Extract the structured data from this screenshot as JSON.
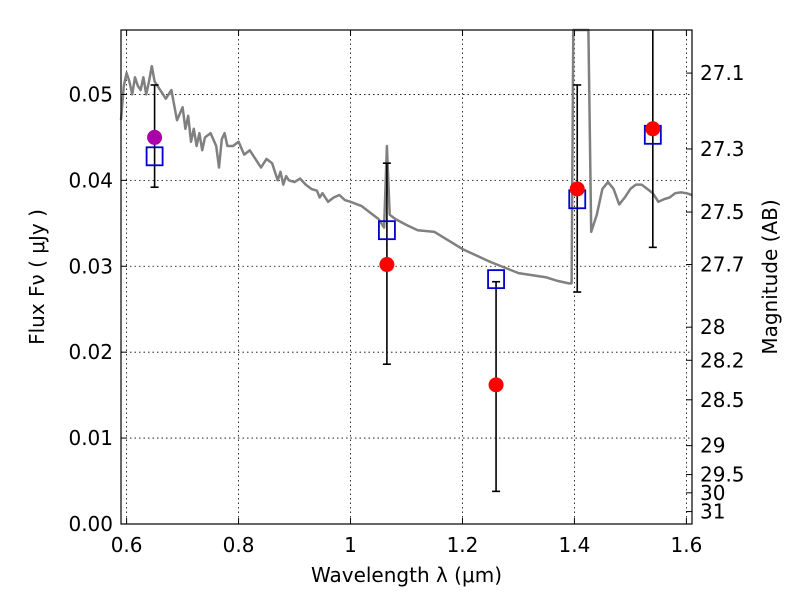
{
  "chart_data": {
    "type": "scatter",
    "xlabel": "Wavelength  λ (μm)",
    "ylabel": "Flux  Fν  ( μJy )",
    "ylabel_right": "Magnitude (AB)",
    "xlim": [
      0.59,
      1.61
    ],
    "ylim": [
      0.0,
      0.0575
    ],
    "x_ticks": [
      0.6,
      0.8,
      1.0,
      1.2,
      1.4,
      1.6
    ],
    "x_tick_labels": [
      "0.6",
      "0.8",
      "1",
      "1.2",
      "1.4",
      "1.6"
    ],
    "y_ticks": [
      0.0,
      0.01,
      0.02,
      0.03,
      0.04,
      0.05
    ],
    "y_tick_labels": [
      "0.00",
      "0.01",
      "0.02",
      "0.03",
      "0.04",
      "0.05"
    ],
    "right_ticks": [
      27.1,
      27.3,
      27.5,
      27.7,
      28,
      28.2,
      28.5,
      29,
      29.5,
      30,
      31
    ],
    "right_tick_labels": [
      "27.1",
      "27.3",
      "27.5",
      "27.7",
      "28",
      "28.2",
      "28.5",
      "29",
      "29.5",
      "30",
      "31"
    ],
    "grid": true,
    "colors": {
      "model": "#808080",
      "observed": "#ff0000",
      "observed_first": "#aa00aa",
      "model_box": "#0000cc",
      "errorbar": "#000000"
    },
    "model_spectrum": {
      "x": [
        0.59,
        0.595,
        0.6,
        0.605,
        0.61,
        0.615,
        0.62,
        0.625,
        0.63,
        0.635,
        0.64,
        0.645,
        0.65,
        0.66,
        0.67,
        0.68,
        0.69,
        0.7,
        0.705,
        0.71,
        0.715,
        0.72,
        0.725,
        0.73,
        0.735,
        0.74,
        0.75,
        0.76,
        0.765,
        0.77,
        0.775,
        0.78,
        0.79,
        0.8,
        0.81,
        0.82,
        0.83,
        0.84,
        0.85,
        0.86,
        0.87,
        0.875,
        0.88,
        0.885,
        0.89,
        0.9,
        0.91,
        0.92,
        0.93,
        0.94,
        0.945,
        0.95,
        0.96,
        0.97,
        0.98,
        0.99,
        1.0,
        1.02,
        1.04,
        1.05,
        1.06,
        1.065,
        1.07,
        1.08,
        1.1,
        1.12,
        1.15,
        1.2,
        1.25,
        1.3,
        1.35,
        1.37,
        1.39,
        1.395,
        1.398,
        1.4,
        1.405,
        1.41,
        1.415,
        1.42,
        1.425,
        1.43,
        1.44,
        1.45,
        1.46,
        1.47,
        1.48,
        1.49,
        1.5,
        1.51,
        1.52,
        1.53,
        1.54,
        1.55,
        1.56,
        1.57,
        1.58,
        1.59,
        1.6,
        1.61
      ],
      "y": [
        0.047,
        0.051,
        0.0525,
        0.0515,
        0.05,
        0.052,
        0.051,
        0.0505,
        0.052,
        0.05,
        0.0515,
        0.0533,
        0.0515,
        0.0505,
        0.0495,
        0.0505,
        0.047,
        0.0485,
        0.046,
        0.0475,
        0.0445,
        0.046,
        0.044,
        0.0455,
        0.0435,
        0.045,
        0.0455,
        0.044,
        0.0415,
        0.0448,
        0.0455,
        0.044,
        0.044,
        0.0445,
        0.043,
        0.0435,
        0.0425,
        0.0415,
        0.0425,
        0.042,
        0.04,
        0.041,
        0.0395,
        0.0405,
        0.04,
        0.0398,
        0.0402,
        0.0395,
        0.039,
        0.0388,
        0.038,
        0.0385,
        0.0375,
        0.038,
        0.0383,
        0.0377,
        0.0375,
        0.037,
        0.036,
        0.0355,
        0.0345,
        0.044,
        0.036,
        0.0355,
        0.0348,
        0.0342,
        0.034,
        0.032,
        0.0305,
        0.0292,
        0.0287,
        0.0283,
        0.028,
        0.028,
        0.0575,
        0.0575,
        0.0575,
        0.0575,
        0.0575,
        0.0575,
        0.0575,
        0.034,
        0.036,
        0.039,
        0.0398,
        0.039,
        0.0372,
        0.038,
        0.039,
        0.0395,
        0.0395,
        0.039,
        0.0385,
        0.0375,
        0.0378,
        0.038,
        0.0385,
        0.0386,
        0.0385,
        0.0383
      ]
    },
    "series": [
      {
        "points": [
          {
            "x": 0.65,
            "y": 0.045,
            "err_low": 0.0392,
            "err_high": 0.0511,
            "model": 0.0428
          },
          {
            "x": 1.065,
            "y": 0.0302,
            "err_low": 0.0186,
            "err_high": 0.042,
            "model": 0.0342
          },
          {
            "x": 1.26,
            "y": 0.0162,
            "err_low": 0.0038,
            "err_high": 0.0282,
            "model": 0.0285
          },
          {
            "x": 1.405,
            "y": 0.039,
            "err_low": 0.027,
            "err_high": 0.0511,
            "model": 0.0378
          },
          {
            "x": 1.54,
            "y": 0.046,
            "err_low": 0.0322,
            "err_high": 0.0575,
            "model": 0.0453
          }
        ]
      }
    ]
  }
}
